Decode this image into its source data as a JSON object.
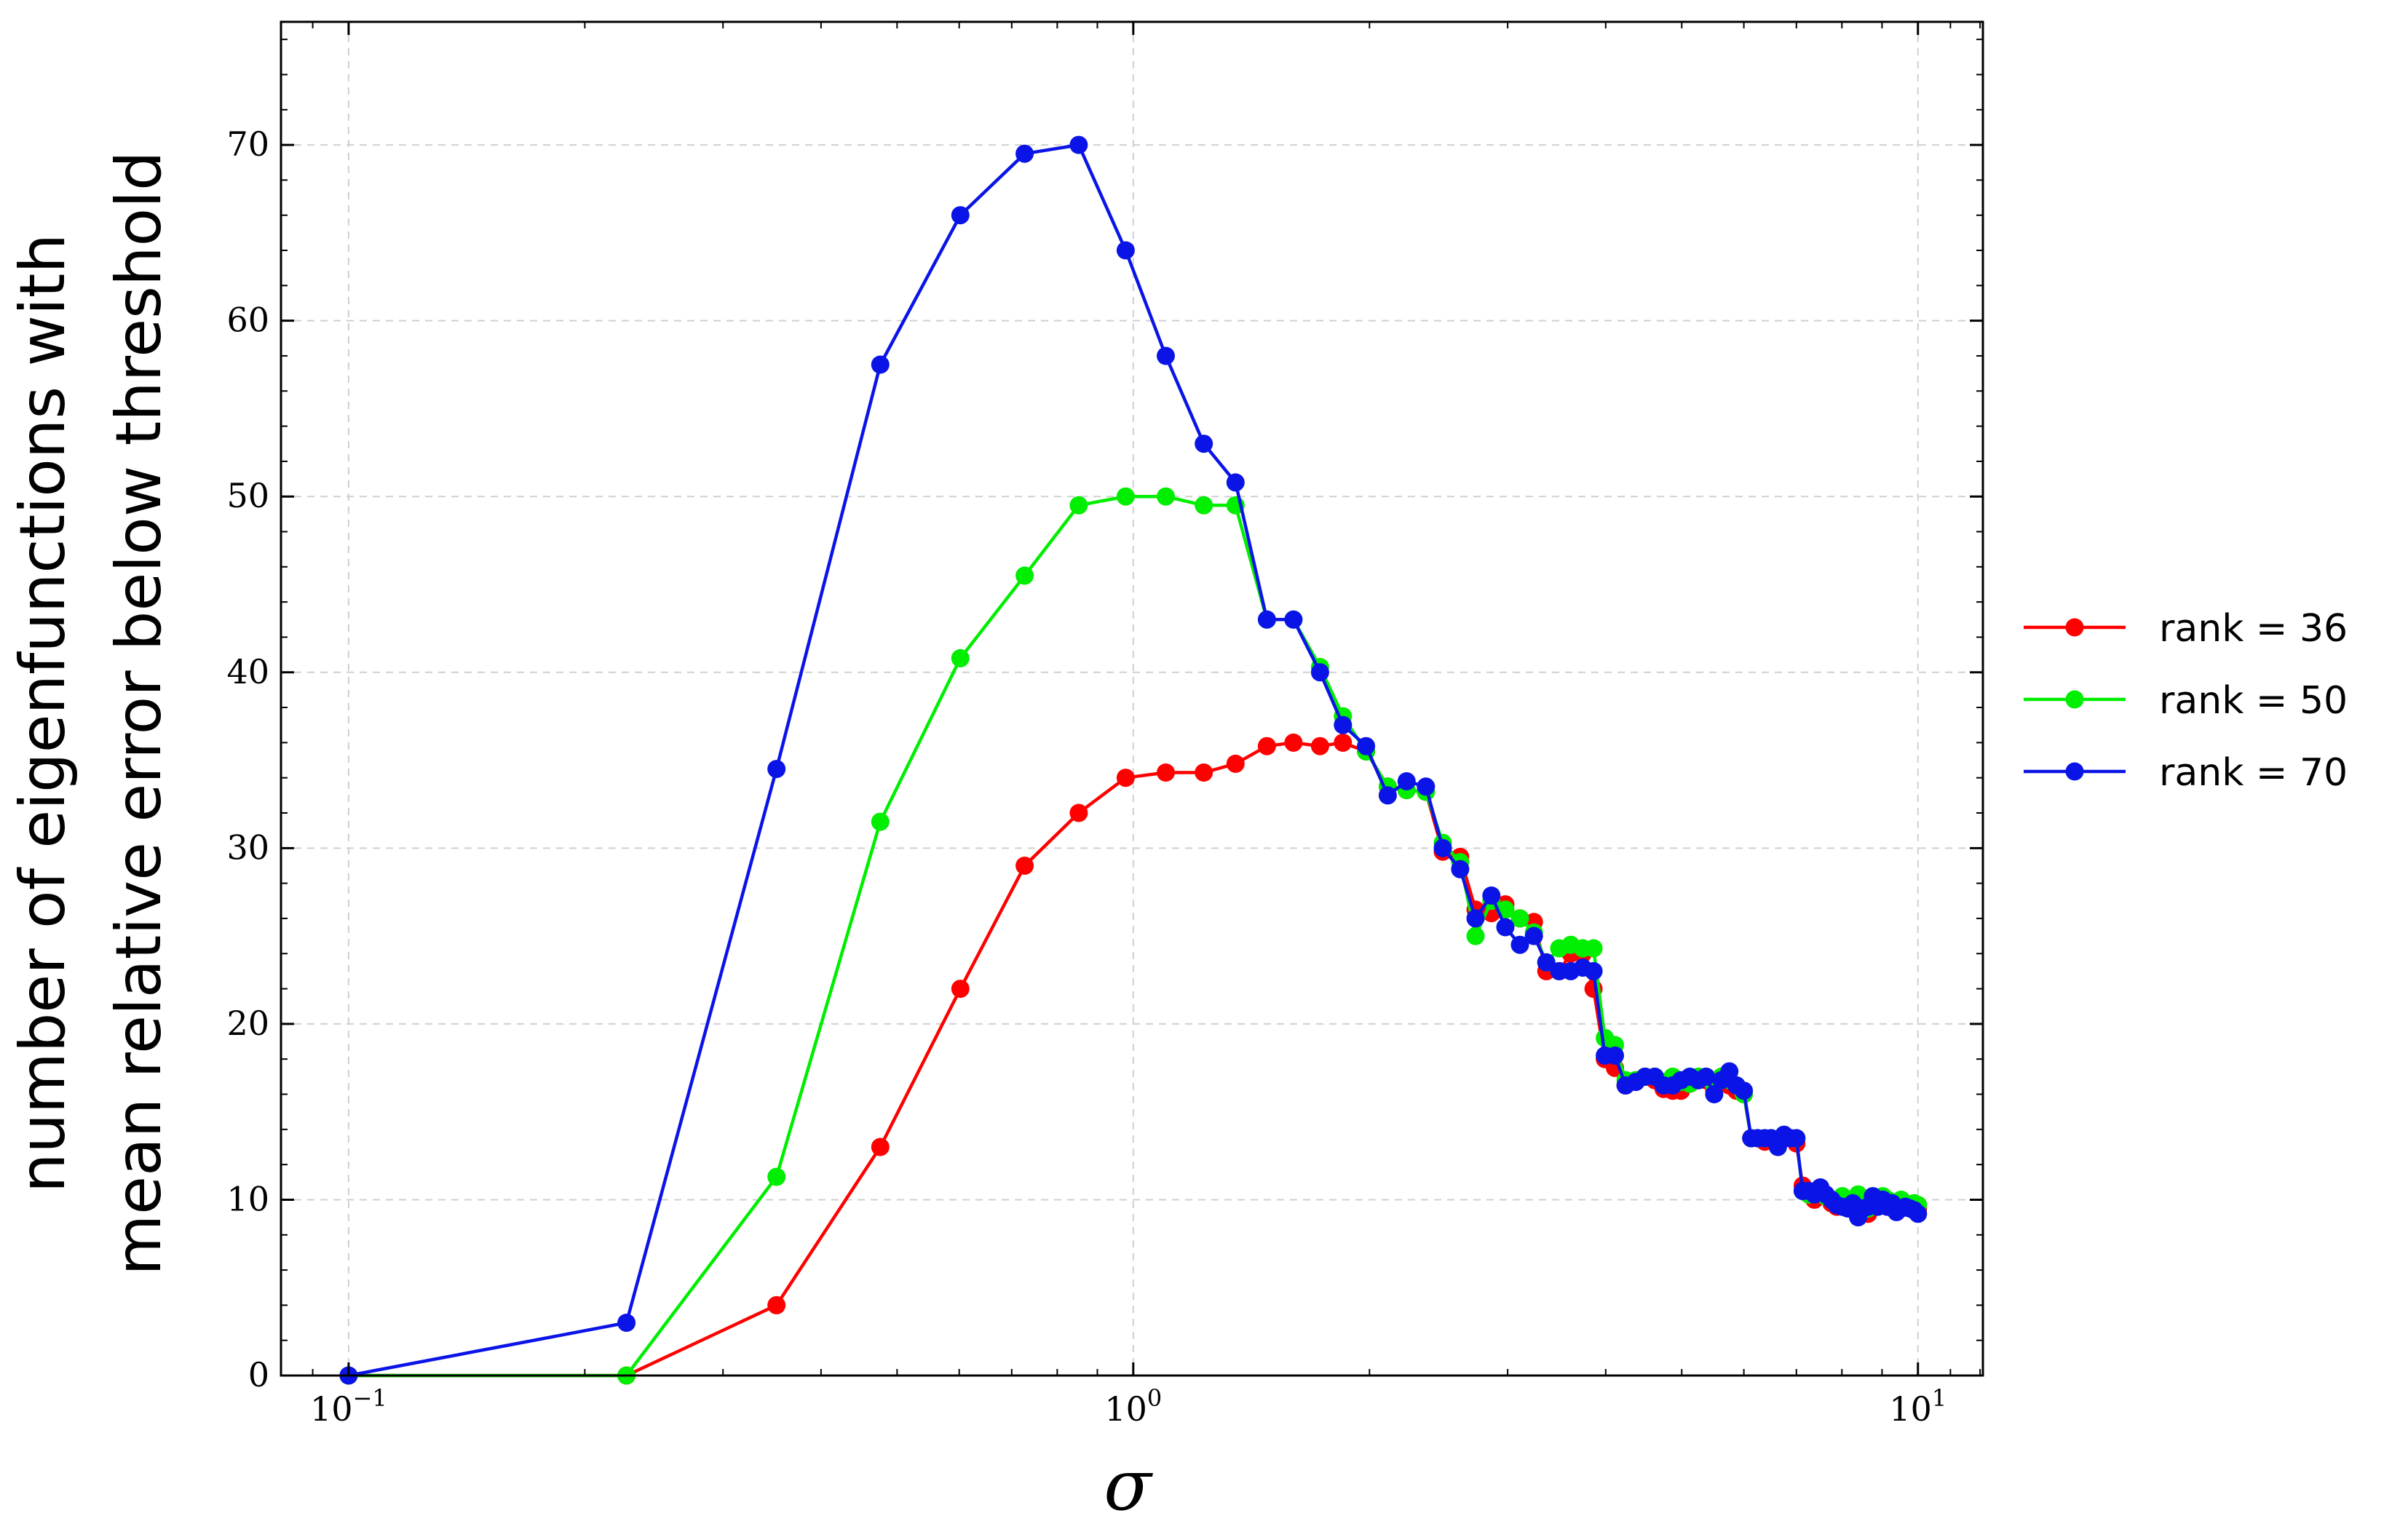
{
  "chart_data": {
    "type": "line",
    "xlabel": "σ",
    "ylabel_lines": [
      "number of eigenfunctions with",
      "mean relative error below threshold"
    ],
    "xscale": "log",
    "xlim": [
      0.082,
      12.1
    ],
    "ylim": [
      0,
      77
    ],
    "xticks": [
      {
        "value": 0.1,
        "base": "10",
        "exp": "−1"
      },
      {
        "value": 1,
        "base": "10",
        "exp": "0"
      },
      {
        "value": 10,
        "base": "10",
        "exp": "1"
      }
    ],
    "yticks": [
      0,
      10,
      20,
      30,
      40,
      50,
      60,
      70
    ],
    "grid": true,
    "legend_position": "right, outside plot",
    "series": [
      {
        "name": "rank = 36",
        "color": "#ff0000",
        "points": [
          [
            0.1,
            0
          ],
          [
            0.226,
            0
          ],
          [
            0.351,
            4
          ],
          [
            0.476,
            13
          ],
          [
            0.602,
            22
          ],
          [
            0.727,
            29
          ],
          [
            0.852,
            32
          ],
          [
            0.978,
            34
          ],
          [
            1.1,
            34.3
          ],
          [
            1.23,
            34.3
          ],
          [
            1.35,
            34.8
          ],
          [
            1.48,
            35.8
          ],
          [
            1.6,
            36
          ],
          [
            1.73,
            35.8
          ],
          [
            1.85,
            36
          ],
          [
            1.98,
            35.5
          ],
          [
            2.11,
            33.5
          ],
          [
            2.23,
            33.3
          ],
          [
            2.36,
            33.2
          ],
          [
            2.48,
            29.8
          ],
          [
            2.61,
            29.5
          ],
          [
            2.73,
            26.5
          ],
          [
            2.86,
            26.3
          ],
          [
            2.98,
            26.8
          ],
          [
            3.11,
            26
          ],
          [
            3.24,
            25.8
          ],
          [
            3.36,
            23
          ],
          [
            3.49,
            23
          ],
          [
            3.61,
            24
          ],
          [
            3.74,
            24
          ],
          [
            3.86,
            22
          ],
          [
            3.99,
            18
          ],
          [
            4.11,
            17.5
          ],
          [
            4.24,
            16.5
          ],
          [
            4.37,
            16.8
          ],
          [
            4.49,
            17
          ],
          [
            4.62,
            16.8
          ],
          [
            4.74,
            16.3
          ],
          [
            4.87,
            16.2
          ],
          [
            4.99,
            16.2
          ],
          [
            5.12,
            16.6
          ],
          [
            5.25,
            16.8
          ],
          [
            5.37,
            16.8
          ],
          [
            5.5,
            16.2
          ],
          [
            5.62,
            17
          ],
          [
            5.75,
            16.5
          ],
          [
            5.87,
            16.2
          ],
          [
            6.0,
            16
          ],
          [
            6.13,
            13.5
          ],
          [
            6.25,
            13.5
          ],
          [
            6.38,
            13.3
          ],
          [
            6.5,
            13.5
          ],
          [
            6.63,
            13.3
          ],
          [
            6.75,
            13.5
          ],
          [
            6.88,
            13.5
          ],
          [
            7.0,
            13.2
          ],
          [
            7.13,
            10.8
          ],
          [
            7.26,
            10.3
          ],
          [
            7.38,
            10
          ],
          [
            7.51,
            10.5
          ],
          [
            7.63,
            10.2
          ],
          [
            7.76,
            9.8
          ],
          [
            7.88,
            9.6
          ],
          [
            8.01,
            9.8
          ],
          [
            8.14,
            10
          ],
          [
            8.26,
            9.8
          ],
          [
            8.39,
            10
          ],
          [
            8.51,
            9.5
          ],
          [
            8.64,
            9.2
          ],
          [
            8.76,
            10
          ],
          [
            8.89,
            9.7
          ],
          [
            9.02,
            10
          ],
          [
            9.14,
            9.8
          ],
          [
            9.27,
            9.6
          ],
          [
            9.39,
            9.5
          ],
          [
            9.52,
            9.8
          ],
          [
            9.64,
            9.6
          ],
          [
            9.77,
            9.5
          ],
          [
            9.89,
            9.6
          ],
          [
            10.0,
            9.5
          ]
        ]
      },
      {
        "name": "rank = 50",
        "color": "#00ee00",
        "points": [
          [
            0.1,
            0
          ],
          [
            0.226,
            0
          ],
          [
            0.351,
            11.3
          ],
          [
            0.476,
            31.5
          ],
          [
            0.602,
            40.8
          ],
          [
            0.727,
            45.5
          ],
          [
            0.852,
            49.5
          ],
          [
            0.978,
            50
          ],
          [
            1.1,
            50
          ],
          [
            1.23,
            49.5
          ],
          [
            1.35,
            49.5
          ],
          [
            1.48,
            43
          ],
          [
            1.6,
            43
          ],
          [
            1.73,
            40.3
          ],
          [
            1.85,
            37.5
          ],
          [
            1.98,
            35.5
          ],
          [
            2.11,
            33.5
          ],
          [
            2.23,
            33.3
          ],
          [
            2.36,
            33.2
          ],
          [
            2.48,
            30.3
          ],
          [
            2.61,
            29.2
          ],
          [
            2.73,
            25
          ],
          [
            2.86,
            27
          ],
          [
            2.98,
            26.5
          ],
          [
            3.11,
            26
          ],
          [
            3.24,
            25.2
          ],
          [
            3.36,
            23.5
          ],
          [
            3.49,
            24.3
          ],
          [
            3.61,
            24.5
          ],
          [
            3.74,
            24.3
          ],
          [
            3.86,
            24.3
          ],
          [
            3.99,
            19.2
          ],
          [
            4.11,
            18.8
          ],
          [
            4.24,
            16.8
          ],
          [
            4.37,
            16.8
          ],
          [
            4.49,
            17
          ],
          [
            4.62,
            17
          ],
          [
            4.74,
            16.7
          ],
          [
            4.87,
            17
          ],
          [
            4.99,
            16.7
          ],
          [
            5.12,
            16.6
          ],
          [
            5.25,
            17
          ],
          [
            5.37,
            17
          ],
          [
            5.5,
            16.5
          ],
          [
            5.62,
            17
          ],
          [
            5.75,
            16.8
          ],
          [
            5.87,
            16.5
          ],
          [
            6.0,
            16
          ],
          [
            6.13,
            13.5
          ],
          [
            6.25,
            13.5
          ],
          [
            6.38,
            13.5
          ],
          [
            6.5,
            13.5
          ],
          [
            6.63,
            13.3
          ],
          [
            6.75,
            13.5
          ],
          [
            6.88,
            13.5
          ],
          [
            7.0,
            13.5
          ],
          [
            7.13,
            10.5
          ],
          [
            7.26,
            10.3
          ],
          [
            7.38,
            10.3
          ],
          [
            7.51,
            10.5
          ],
          [
            7.63,
            10.2
          ],
          [
            7.76,
            10
          ],
          [
            7.88,
            9.8
          ],
          [
            8.01,
            10.2
          ],
          [
            8.14,
            10
          ],
          [
            8.26,
            9.8
          ],
          [
            8.39,
            10.3
          ],
          [
            8.51,
            9.7
          ],
          [
            8.64,
            9.5
          ],
          [
            8.76,
            10.2
          ],
          [
            8.89,
            9.8
          ],
          [
            9.02,
            10.2
          ],
          [
            9.14,
            10
          ],
          [
            9.27,
            9.8
          ],
          [
            9.39,
            9.8
          ],
          [
            9.52,
            10
          ],
          [
            9.64,
            9.8
          ],
          [
            9.77,
            9.6
          ],
          [
            9.89,
            9.8
          ],
          [
            10.0,
            9.7
          ]
        ]
      },
      {
        "name": "rank = 70",
        "color": "#0a14e6",
        "points": [
          [
            0.1,
            0
          ],
          [
            0.226,
            3
          ],
          [
            0.351,
            34.5
          ],
          [
            0.476,
            57.5
          ],
          [
            0.602,
            66
          ],
          [
            0.727,
            69.5
          ],
          [
            0.852,
            70
          ],
          [
            0.978,
            64
          ],
          [
            1.1,
            58
          ],
          [
            1.23,
            53
          ],
          [
            1.35,
            50.8
          ],
          [
            1.48,
            43
          ],
          [
            1.6,
            43
          ],
          [
            1.73,
            40
          ],
          [
            1.85,
            37
          ],
          [
            1.98,
            35.8
          ],
          [
            2.11,
            33
          ],
          [
            2.23,
            33.8
          ],
          [
            2.36,
            33.5
          ],
          [
            2.48,
            30
          ],
          [
            2.61,
            28.8
          ],
          [
            2.73,
            26
          ],
          [
            2.86,
            27.3
          ],
          [
            2.98,
            25.5
          ],
          [
            3.11,
            24.5
          ],
          [
            3.24,
            25
          ],
          [
            3.36,
            23.5
          ],
          [
            3.49,
            23
          ],
          [
            3.61,
            23
          ],
          [
            3.74,
            23.2
          ],
          [
            3.86,
            23
          ],
          [
            3.99,
            18.2
          ],
          [
            4.11,
            18.2
          ],
          [
            4.24,
            16.5
          ],
          [
            4.37,
            16.7
          ],
          [
            4.49,
            17
          ],
          [
            4.62,
            17
          ],
          [
            4.74,
            16.5
          ],
          [
            4.87,
            16.5
          ],
          [
            4.99,
            16.8
          ],
          [
            5.12,
            17
          ],
          [
            5.25,
            16.8
          ],
          [
            5.37,
            17
          ],
          [
            5.5,
            16
          ],
          [
            5.62,
            16.8
          ],
          [
            5.75,
            17.3
          ],
          [
            5.87,
            16.5
          ],
          [
            6.0,
            16.2
          ],
          [
            6.13,
            13.5
          ],
          [
            6.25,
            13.5
          ],
          [
            6.38,
            13.5
          ],
          [
            6.5,
            13.5
          ],
          [
            6.63,
            13
          ],
          [
            6.75,
            13.7
          ],
          [
            6.88,
            13.5
          ],
          [
            7.0,
            13.5
          ],
          [
            7.13,
            10.5
          ],
          [
            7.26,
            10.5
          ],
          [
            7.38,
            10.3
          ],
          [
            7.51,
            10.7
          ],
          [
            7.63,
            10.3
          ],
          [
            7.76,
            10
          ],
          [
            7.88,
            9.7
          ],
          [
            8.01,
            9.6
          ],
          [
            8.14,
            9.5
          ],
          [
            8.26,
            9.8
          ],
          [
            8.39,
            9
          ],
          [
            8.51,
            9.5
          ],
          [
            8.64,
            9.6
          ],
          [
            8.76,
            10.2
          ],
          [
            8.89,
            9.6
          ],
          [
            9.02,
            10
          ],
          [
            9.14,
            9.6
          ],
          [
            9.27,
            9.8
          ],
          [
            9.39,
            9.3
          ],
          [
            9.52,
            9.5
          ],
          [
            9.64,
            9.6
          ],
          [
            9.77,
            9.5
          ],
          [
            9.89,
            9.4
          ],
          [
            10.0,
            9.2
          ]
        ]
      }
    ]
  }
}
